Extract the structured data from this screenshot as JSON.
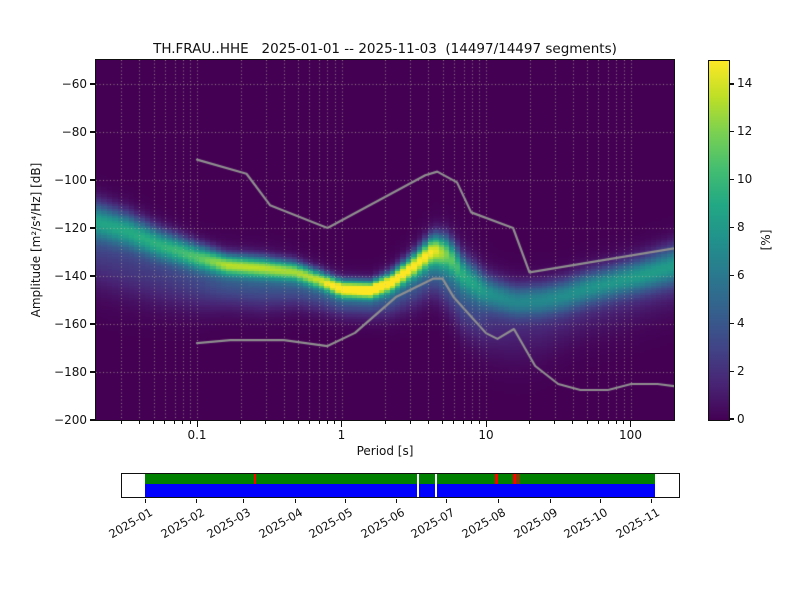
{
  "title": "TH.FRAU..HHE   2025-01-01 -- 2025-11-03  (14497/14497 segments)",
  "axes": {
    "xlabel": "Period [s]",
    "ylabel": "Amplitude [m²/s⁴/Hz] [dB]",
    "xlim": [
      0.02,
      200
    ],
    "ylim": [
      -200,
      -50
    ],
    "x_major_ticks": [
      0.1,
      1,
      10,
      100
    ],
    "x_major_labels": [
      "0.1",
      "1",
      "10",
      "100"
    ],
    "y_ticks": [
      -60,
      -80,
      -100,
      -120,
      -140,
      -160,
      -180,
      -200
    ],
    "y_tick_labels": [
      "−60",
      "−80",
      "−100",
      "−120",
      "−140",
      "−160",
      "−180",
      "−200"
    ]
  },
  "colorbar": {
    "label": "[%]",
    "min": 0,
    "max": 15,
    "ticks": [
      0,
      2,
      4,
      6,
      8,
      10,
      12,
      14
    ],
    "tick_labels": [
      "0",
      "2",
      "4",
      "6",
      "8",
      "10",
      "12",
      "14"
    ]
  },
  "chart_data": {
    "type": "heatmap",
    "title": "TH.FRAU..HHE   2025-01-01 -- 2025-11-03  (14497/14497 segments)",
    "xlabel": "Period [s]",
    "ylabel": "Amplitude [m²/s⁴/Hz] [dB]",
    "x_scale": "log",
    "period_limits_s": [
      0.02,
      200
    ],
    "db_limits": [
      -200,
      -50
    ],
    "probability_percent_range": [
      0,
      15
    ],
    "db_bin_width": 1.0,
    "period_bin_octave_fraction": 0.125,
    "ppsd_band_controls_comment": "period_s, mode_dB, peak_probability_pct, sigma_dB, tail_offset_dB, tail_pct, tail_sigma_dB",
    "ppsd_band": [
      [
        0.02,
        -117.0,
        7.5,
        5.5,
        -13,
        2.5,
        10
      ],
      [
        0.033,
        -121.0,
        8.0,
        5.0,
        -13,
        2.5,
        10
      ],
      [
        0.056,
        -127.0,
        8.5,
        4.5,
        -12,
        2.5,
        9
      ],
      [
        0.1,
        -132.0,
        9.5,
        3.8,
        -10,
        3.0,
        8
      ],
      [
        0.16,
        -135.3,
        11.0,
        3.0,
        -7,
        4.0,
        7
      ],
      [
        0.28,
        -136.5,
        11.0,
        3.0,
        -7,
        4.0,
        7
      ],
      [
        0.47,
        -138.0,
        10.5,
        2.8,
        -6,
        4.0,
        6
      ],
      [
        0.7,
        -141.5,
        11.0,
        2.6,
        -5,
        4.0,
        5.5
      ],
      [
        1.0,
        -145.3,
        14.0,
        2.4,
        -4,
        4.5,
        5
      ],
      [
        1.6,
        -145.8,
        15.0,
        2.4,
        -4,
        4.5,
        5
      ],
      [
        2.2,
        -142.5,
        13.5,
        2.8,
        -5,
        4.5,
        6
      ],
      [
        3.0,
        -136.8,
        12.5,
        3.3,
        -6,
        4.5,
        7
      ],
      [
        4.3,
        -128.8,
        11.5,
        4.2,
        -7,
        5.0,
        8
      ],
      [
        5.5,
        -130.5,
        8.5,
        4.8,
        -9,
        5.0,
        9
      ],
      [
        7.0,
        -139.0,
        6.5,
        5.0,
        -9,
        4.0,
        10
      ],
      [
        9.0,
        -144.5,
        6.3,
        5.0,
        -9,
        3.0,
        10
      ],
      [
        11.0,
        -147.5,
        6.2,
        4.8,
        -10,
        2.0,
        10
      ],
      [
        16.0,
        -150.5,
        6.0,
        4.8,
        -10,
        1.5,
        10
      ],
      [
        24.0,
        -150.0,
        6.0,
        4.8,
        -9,
        1.5,
        10
      ],
      [
        35.0,
        -148.0,
        6.2,
        4.8,
        -8,
        1.5,
        9
      ],
      [
        50.0,
        -145.0,
        6.5,
        4.8,
        -7,
        1.5,
        9
      ],
      [
        80.0,
        -142.0,
        6.8,
        4.8,
        -7,
        1.5,
        9
      ],
      [
        120.0,
        -139.5,
        7.0,
        5.0,
        -6,
        1.5,
        9
      ],
      [
        200.0,
        -135.5,
        7.0,
        5.5,
        -6,
        1.5,
        9
      ]
    ],
    "noise_models": {
      "high_nhnm": [
        [
          0.1,
          -91.5
        ],
        [
          0.22,
          -97.4
        ],
        [
          0.32,
          -110.5
        ],
        [
          0.8,
          -120.0
        ],
        [
          3.8,
          -98.0
        ],
        [
          4.6,
          -96.5
        ],
        [
          6.3,
          -101.0
        ],
        [
          7.9,
          -113.5
        ],
        [
          15.4,
          -120.0
        ],
        [
          20.0,
          -138.5
        ],
        [
          354.8,
          -126.0
        ]
      ],
      "low_nlnm": [
        [
          0.1,
          -168.0
        ],
        [
          0.17,
          -166.7
        ],
        [
          0.4,
          -166.7
        ],
        [
          0.8,
          -169.2
        ],
        [
          1.24,
          -163.7
        ],
        [
          2.4,
          -148.6
        ],
        [
          4.3,
          -141.1
        ],
        [
          5.0,
          -141.1
        ],
        [
          6.0,
          -149.0
        ],
        [
          10.0,
          -163.8
        ],
        [
          12.0,
          -166.2
        ],
        [
          15.6,
          -162.1
        ],
        [
          21.9,
          -177.5
        ],
        [
          31.6,
          -185.0
        ],
        [
          45.0,
          -187.5
        ],
        [
          70.0,
          -187.5
        ],
        [
          101.0,
          -185.0
        ],
        [
          154.0,
          -185.0
        ],
        [
          328.0,
          -187.5
        ]
      ]
    }
  },
  "timeline": {
    "start_date": "2025-01-01",
    "end_date": "2025-11-03",
    "month_tick_labels": [
      "2025-01",
      "2025-02",
      "2025-03",
      "2025-04",
      "2025-05",
      "2025-06",
      "2025-07",
      "2025-08",
      "2025-09",
      "2025-10",
      "2025-11"
    ],
    "gap_events_white": [
      {
        "date": "2025-06-14",
        "width_days": 1.5
      },
      {
        "date": "2025-06-25",
        "width_days": 1.2
      }
    ],
    "quality_marks_red": [
      {
        "date": "2025-03-08",
        "width_days": 1.2
      },
      {
        "date": "2025-07-31",
        "width_days": 2.0
      },
      {
        "date": "2025-08-11",
        "width_days": 2.0
      },
      {
        "date": "2025-08-13",
        "width_days": 1.2
      }
    ]
  },
  "colors": {
    "figure_background": "#ffffff",
    "cmap_low": "#440154",
    "cmap_high": "#fde725",
    "noise_model_line": "#8f8f8f",
    "grid_dots": "#c4c49e",
    "coverage_bar_green": "#008000",
    "data_bar_blue": "#0000ff",
    "event_red": "#ff0000"
  }
}
